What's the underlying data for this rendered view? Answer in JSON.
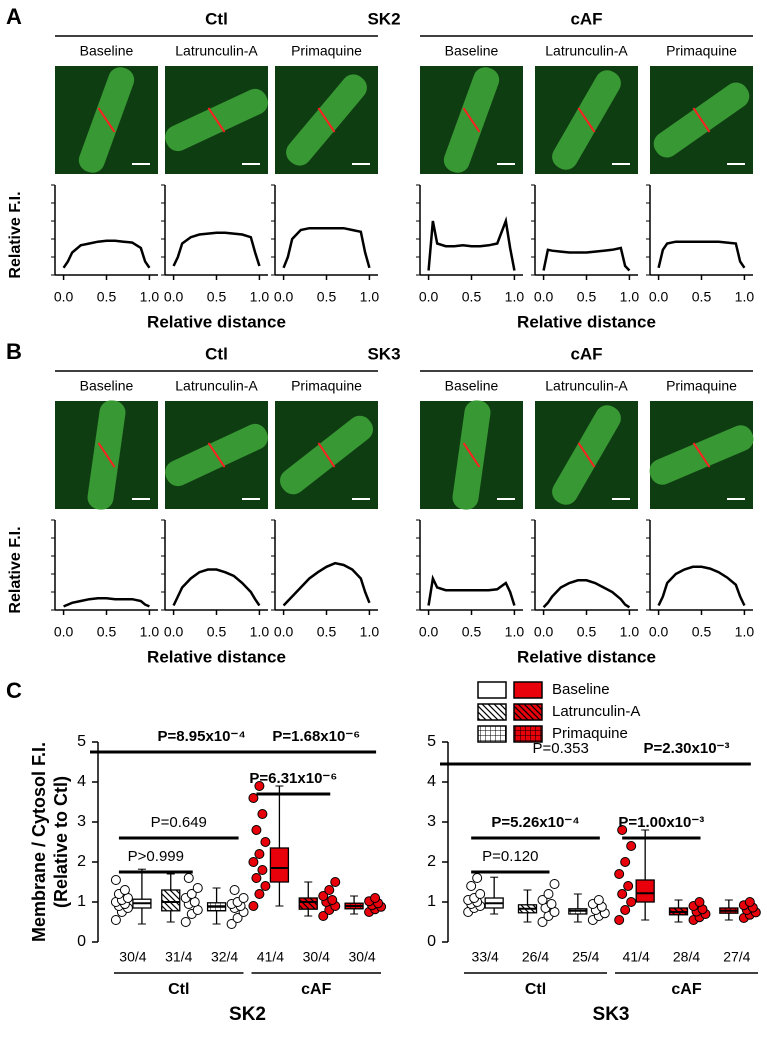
{
  "panels": [
    {
      "letter": "A",
      "marker": "SK2",
      "groups": [
        "Ctl",
        "cAF"
      ],
      "group_colors": [
        "#000000",
        "#e8000b"
      ],
      "conditions": [
        "Baseline",
        "Latrunculin-A",
        "Primaquine"
      ],
      "ylabel": "Relative F.I.",
      "xlabel": "Relative distance"
    },
    {
      "letter": "B",
      "marker": "SK3",
      "groups": [
        "Ctl",
        "cAF"
      ],
      "group_colors": [
        "#000000",
        "#e8000b"
      ],
      "conditions": [
        "Baseline",
        "Latrunculin-A",
        "Primaquine"
      ],
      "ylabel": "Relative F.I.",
      "xlabel": "Relative distance"
    }
  ],
  "panel_c": {
    "letter": "C",
    "legend": [
      "Baseline",
      "Latrunculin-A",
      "Primaquine"
    ]
  },
  "chart_data": [
    {
      "type": "line",
      "x": [
        0,
        0.05,
        0.1,
        0.2,
        0.3,
        0.4,
        0.5,
        0.6,
        0.7,
        0.8,
        0.9,
        0.95,
        1.0
      ],
      "series": [
        {
          "color": "#000000",
          "values": [
            0.08,
            0.15,
            0.25,
            0.33,
            0.35,
            0.37,
            0.38,
            0.38,
            0.37,
            0.36,
            0.3,
            0.15,
            0.08
          ]
        }
      ],
      "xlim": [
        -0.1,
        1.1
      ],
      "ylim": [
        0,
        1
      ],
      "xticks": [
        {
          "value": 0,
          "label": "0.0"
        },
        {
          "value": 0.5,
          "label": "0.5"
        },
        {
          "value": 1,
          "label": "1.0"
        }
      ]
    },
    {
      "type": "line",
      "x": [
        0,
        0.05,
        0.1,
        0.2,
        0.3,
        0.4,
        0.5,
        0.6,
        0.7,
        0.8,
        0.9,
        0.95,
        1.0
      ],
      "series": [
        {
          "color": "#000000",
          "values": [
            0.1,
            0.2,
            0.35,
            0.42,
            0.45,
            0.46,
            0.47,
            0.47,
            0.46,
            0.45,
            0.42,
            0.25,
            0.1
          ]
        }
      ],
      "xlim": [
        -0.1,
        1.1
      ],
      "ylim": [
        0,
        1
      ],
      "xticks": [
        {
          "value": 0,
          "label": "0.0"
        },
        {
          "value": 0.5,
          "label": "0.5"
        },
        {
          "value": 1,
          "label": "1.0"
        }
      ]
    },
    {
      "type": "line",
      "x": [
        0,
        0.05,
        0.1,
        0.2,
        0.3,
        0.4,
        0.5,
        0.6,
        0.7,
        0.8,
        0.9,
        0.95,
        1.0
      ],
      "series": [
        {
          "color": "#000000",
          "values": [
            0.08,
            0.2,
            0.4,
            0.5,
            0.52,
            0.52,
            0.52,
            0.52,
            0.52,
            0.5,
            0.48,
            0.25,
            0.08
          ]
        }
      ],
      "xlim": [
        -0.1,
        1.1
      ],
      "ylim": [
        0,
        1
      ],
      "xticks": [
        {
          "value": 0,
          "label": "0.0"
        },
        {
          "value": 0.5,
          "label": "0.5"
        },
        {
          "value": 1,
          "label": "1.0"
        }
      ]
    },
    {
      "type": "line",
      "x": [
        0,
        0.05,
        0.1,
        0.2,
        0.3,
        0.4,
        0.5,
        0.6,
        0.7,
        0.8,
        0.9,
        0.95,
        1.0
      ],
      "series": [
        {
          "color": "#000000",
          "values": [
            0.05,
            0.6,
            0.35,
            0.32,
            0.32,
            0.33,
            0.32,
            0.32,
            0.33,
            0.35,
            0.6,
            0.3,
            0.05
          ]
        }
      ],
      "xlim": [
        -0.1,
        1.1
      ],
      "ylim": [
        0,
        1
      ],
      "xticks": [
        {
          "value": 0,
          "label": "0.0"
        },
        {
          "value": 0.5,
          "label": "0.5"
        },
        {
          "value": 1,
          "label": "1.0"
        }
      ]
    },
    {
      "type": "line",
      "x": [
        0,
        0.05,
        0.1,
        0.2,
        0.3,
        0.4,
        0.5,
        0.6,
        0.7,
        0.8,
        0.9,
        0.95,
        1.0
      ],
      "series": [
        {
          "color": "#000000",
          "values": [
            0.05,
            0.28,
            0.27,
            0.26,
            0.25,
            0.25,
            0.25,
            0.26,
            0.27,
            0.28,
            0.3,
            0.1,
            0.05
          ]
        }
      ],
      "xlim": [
        -0.1,
        1.1
      ],
      "ylim": [
        0,
        1
      ],
      "xticks": [
        {
          "value": 0,
          "label": "0.0"
        },
        {
          "value": 0.5,
          "label": "0.5"
        },
        {
          "value": 1,
          "label": "1.0"
        }
      ]
    },
    {
      "type": "line",
      "x": [
        0,
        0.05,
        0.1,
        0.2,
        0.3,
        0.4,
        0.5,
        0.6,
        0.7,
        0.8,
        0.9,
        0.95,
        1.0
      ],
      "series": [
        {
          "color": "#000000",
          "values": [
            0.08,
            0.28,
            0.35,
            0.37,
            0.37,
            0.37,
            0.37,
            0.37,
            0.37,
            0.36,
            0.35,
            0.15,
            0.08
          ]
        }
      ],
      "xlim": [
        -0.1,
        1.1
      ],
      "ylim": [
        0,
        1
      ],
      "xticks": [
        {
          "value": 0,
          "label": "0.0"
        },
        {
          "value": 0.5,
          "label": "0.5"
        },
        {
          "value": 1,
          "label": "1.0"
        }
      ]
    },
    {
      "type": "line",
      "x": [
        0,
        0.05,
        0.1,
        0.2,
        0.3,
        0.4,
        0.5,
        0.6,
        0.7,
        0.8,
        0.9,
        0.95,
        1.0
      ],
      "series": [
        {
          "color": "#000000",
          "values": [
            0.04,
            0.06,
            0.08,
            0.1,
            0.12,
            0.13,
            0.13,
            0.12,
            0.12,
            0.12,
            0.1,
            0.06,
            0.04
          ]
        }
      ],
      "xlim": [
        -0.1,
        1.1
      ],
      "ylim": [
        0,
        1
      ],
      "xticks": [
        {
          "value": 0,
          "label": "0.0"
        },
        {
          "value": 0.5,
          "label": "0.5"
        },
        {
          "value": 1,
          "label": "1.0"
        }
      ]
    },
    {
      "type": "line",
      "x": [
        0,
        0.05,
        0.1,
        0.2,
        0.3,
        0.4,
        0.5,
        0.6,
        0.7,
        0.8,
        0.9,
        0.95,
        1.0
      ],
      "series": [
        {
          "color": "#000000",
          "values": [
            0.05,
            0.15,
            0.25,
            0.35,
            0.42,
            0.45,
            0.45,
            0.42,
            0.38,
            0.3,
            0.2,
            0.12,
            0.05
          ]
        }
      ],
      "xlim": [
        -0.1,
        1.1
      ],
      "ylim": [
        0,
        1
      ],
      "xticks": [
        {
          "value": 0,
          "label": "0.0"
        },
        {
          "value": 0.5,
          "label": "0.5"
        },
        {
          "value": 1,
          "label": "1.0"
        }
      ]
    },
    {
      "type": "line",
      "x": [
        0,
        0.05,
        0.1,
        0.2,
        0.3,
        0.4,
        0.5,
        0.6,
        0.7,
        0.8,
        0.9,
        0.95,
        1.0
      ],
      "series": [
        {
          "color": "#000000",
          "values": [
            0.05,
            0.1,
            0.15,
            0.25,
            0.35,
            0.42,
            0.48,
            0.52,
            0.5,
            0.45,
            0.35,
            0.2,
            0.08
          ]
        }
      ],
      "xlim": [
        -0.1,
        1.1
      ],
      "ylim": [
        0,
        1
      ],
      "xticks": [
        {
          "value": 0,
          "label": "0.0"
        },
        {
          "value": 0.5,
          "label": "0.5"
        },
        {
          "value": 1,
          "label": "1.0"
        }
      ]
    },
    {
      "type": "line",
      "x": [
        0,
        0.05,
        0.1,
        0.2,
        0.3,
        0.4,
        0.5,
        0.6,
        0.7,
        0.8,
        0.9,
        0.95,
        1.0
      ],
      "series": [
        {
          "color": "#000000",
          "values": [
            0.05,
            0.35,
            0.25,
            0.22,
            0.22,
            0.22,
            0.22,
            0.22,
            0.22,
            0.23,
            0.3,
            0.2,
            0.05
          ]
        }
      ],
      "xlim": [
        -0.1,
        1.1
      ],
      "ylim": [
        0,
        1
      ],
      "xticks": [
        {
          "value": 0,
          "label": "0.0"
        },
        {
          "value": 0.5,
          "label": "0.5"
        },
        {
          "value": 1,
          "label": "1.0"
        }
      ]
    },
    {
      "type": "line",
      "x": [
        0,
        0.05,
        0.1,
        0.2,
        0.3,
        0.4,
        0.5,
        0.6,
        0.7,
        0.8,
        0.9,
        0.95,
        1.0
      ],
      "series": [
        {
          "color": "#000000",
          "values": [
            0.03,
            0.08,
            0.15,
            0.25,
            0.3,
            0.33,
            0.33,
            0.3,
            0.25,
            0.2,
            0.12,
            0.06,
            0.03
          ]
        }
      ],
      "xlim": [
        -0.1,
        1.1
      ],
      "ylim": [
        0,
        1
      ],
      "xticks": [
        {
          "value": 0,
          "label": "0.0"
        },
        {
          "value": 0.5,
          "label": "0.5"
        },
        {
          "value": 1,
          "label": "1.0"
        }
      ]
    },
    {
      "type": "line",
      "x": [
        0,
        0.05,
        0.1,
        0.2,
        0.3,
        0.4,
        0.5,
        0.6,
        0.7,
        0.8,
        0.9,
        0.95,
        1.0
      ],
      "series": [
        {
          "color": "#000000",
          "values": [
            0.05,
            0.15,
            0.3,
            0.4,
            0.45,
            0.48,
            0.48,
            0.46,
            0.42,
            0.36,
            0.28,
            0.15,
            0.05
          ]
        }
      ],
      "xlim": [
        -0.1,
        1.1
      ],
      "ylim": [
        0,
        1
      ],
      "xticks": [
        {
          "value": 0,
          "label": "0.0"
        },
        {
          "value": 0.5,
          "label": "0.5"
        },
        {
          "value": 1,
          "label": "1.0"
        }
      ]
    },
    {
      "type": "box",
      "title": "SK2",
      "ylabel": [
        "Membrane / Cytosol F.I.",
        "(Relative to Ctl)"
      ],
      "ylim": [
        0,
        5
      ],
      "yticks": [
        0,
        1,
        2,
        3,
        4,
        5
      ],
      "groups": [
        "Ctl",
        "cAF"
      ],
      "group_colors": [
        "#ffffff",
        "#e8000b"
      ],
      "categories": [
        "30/4",
        "31/4",
        "32/4",
        "41/4",
        "30/4",
        "30/4"
      ],
      "boxes": [
        {
          "min": 0.45,
          "q1": 0.85,
          "median": 0.97,
          "q3": 1.07,
          "max": 1.82,
          "points": [
            0.55,
            0.75,
            0.85,
            0.9,
            0.95,
            1.0,
            1.05,
            1.1,
            1.2,
            1.3,
            1.55
          ]
        },
        {
          "min": 0.5,
          "q1": 0.78,
          "median": 1.0,
          "q3": 1.3,
          "max": 1.7,
          "points": [
            0.5,
            0.7,
            0.8,
            0.95,
            1.0,
            1.1,
            1.2,
            1.35,
            1.6
          ]
        },
        {
          "min": 0.45,
          "q1": 0.78,
          "median": 0.88,
          "q3": 0.98,
          "max": 1.35,
          "points": [
            0.45,
            0.6,
            0.75,
            0.85,
            0.9,
            0.95,
            1.0,
            1.1,
            1.3
          ]
        },
        {
          "min": 0.9,
          "q1": 1.5,
          "median": 1.85,
          "q3": 2.35,
          "max": 3.9,
          "points": [
            0.9,
            1.2,
            1.4,
            1.6,
            1.8,
            2.0,
            2.2,
            2.5,
            2.8,
            3.2,
            3.6,
            3.9
          ]
        },
        {
          "min": 0.65,
          "q1": 0.82,
          "median": 1.0,
          "q3": 1.1,
          "max": 1.5,
          "points": [
            0.65,
            0.8,
            0.9,
            1.0,
            1.05,
            1.15,
            1.3,
            1.5
          ]
        },
        {
          "min": 0.7,
          "q1": 0.83,
          "median": 0.9,
          "q3": 0.97,
          "max": 1.15,
          "points": [
            0.75,
            0.82,
            0.88,
            0.92,
            0.97,
            1.02,
            1.1
          ]
        }
      ],
      "annotations": [
        {
          "text": "P=8.95x10⁻⁴",
          "bold": true
        },
        {
          "text": "P=1.68x10⁻⁶",
          "bold": true
        },
        {
          "text": "P=6.31x10⁻⁶",
          "bold": true
        },
        {
          "text": "P=0.649",
          "bold": false
        },
        {
          "text": "P>0.999",
          "bold": false
        }
      ]
    },
    {
      "type": "box",
      "title": "SK3",
      "ylim": [
        0,
        5
      ],
      "yticks": [
        0,
        1,
        2,
        3,
        4,
        5
      ],
      "groups": [
        "Ctl",
        "cAF"
      ],
      "group_colors": [
        "#ffffff",
        "#e8000b"
      ],
      "categories": [
        "33/4",
        "26/4",
        "25/4",
        "41/4",
        "28/4",
        "27/4"
      ],
      "boxes": [
        {
          "min": 0.7,
          "q1": 0.85,
          "median": 0.97,
          "q3": 1.1,
          "max": 1.62,
          "points": [
            0.75,
            0.85,
            0.9,
            0.95,
            1.0,
            1.05,
            1.1,
            1.2,
            1.4,
            1.6
          ]
        },
        {
          "min": 0.5,
          "q1": 0.73,
          "median": 0.83,
          "q3": 0.93,
          "max": 1.3,
          "points": [
            0.5,
            0.65,
            0.75,
            0.85,
            0.95,
            1.05,
            1.2,
            1.45
          ]
        },
        {
          "min": 0.5,
          "q1": 0.7,
          "median": 0.78,
          "q3": 0.83,
          "max": 1.2,
          "points": [
            0.55,
            0.65,
            0.72,
            0.8,
            0.88,
            0.95,
            1.05
          ]
        },
        {
          "min": 0.55,
          "q1": 1.0,
          "median": 1.22,
          "q3": 1.55,
          "max": 2.8,
          "points": [
            0.55,
            0.8,
            1.0,
            1.2,
            1.4,
            1.7,
            2.0,
            2.4,
            2.8
          ]
        },
        {
          "min": 0.5,
          "q1": 0.68,
          "median": 0.75,
          "q3": 0.85,
          "max": 1.05,
          "points": [
            0.55,
            0.62,
            0.7,
            0.76,
            0.82,
            0.9,
            1.0
          ]
        },
        {
          "min": 0.55,
          "q1": 0.72,
          "median": 0.78,
          "q3": 0.85,
          "max": 1.05,
          "points": [
            0.6,
            0.68,
            0.74,
            0.8,
            0.86,
            0.92,
            1.0
          ]
        }
      ],
      "annotations": [
        {
          "text": "P=0.353",
          "bold": false
        },
        {
          "text": "P=2.30x10⁻³",
          "bold": true
        },
        {
          "text": "P=5.26x10⁻⁴",
          "bold": true
        },
        {
          "text": "P=1.00x10⁻³",
          "bold": true
        },
        {
          "text": "P=0.120",
          "bold": false
        }
      ]
    }
  ]
}
